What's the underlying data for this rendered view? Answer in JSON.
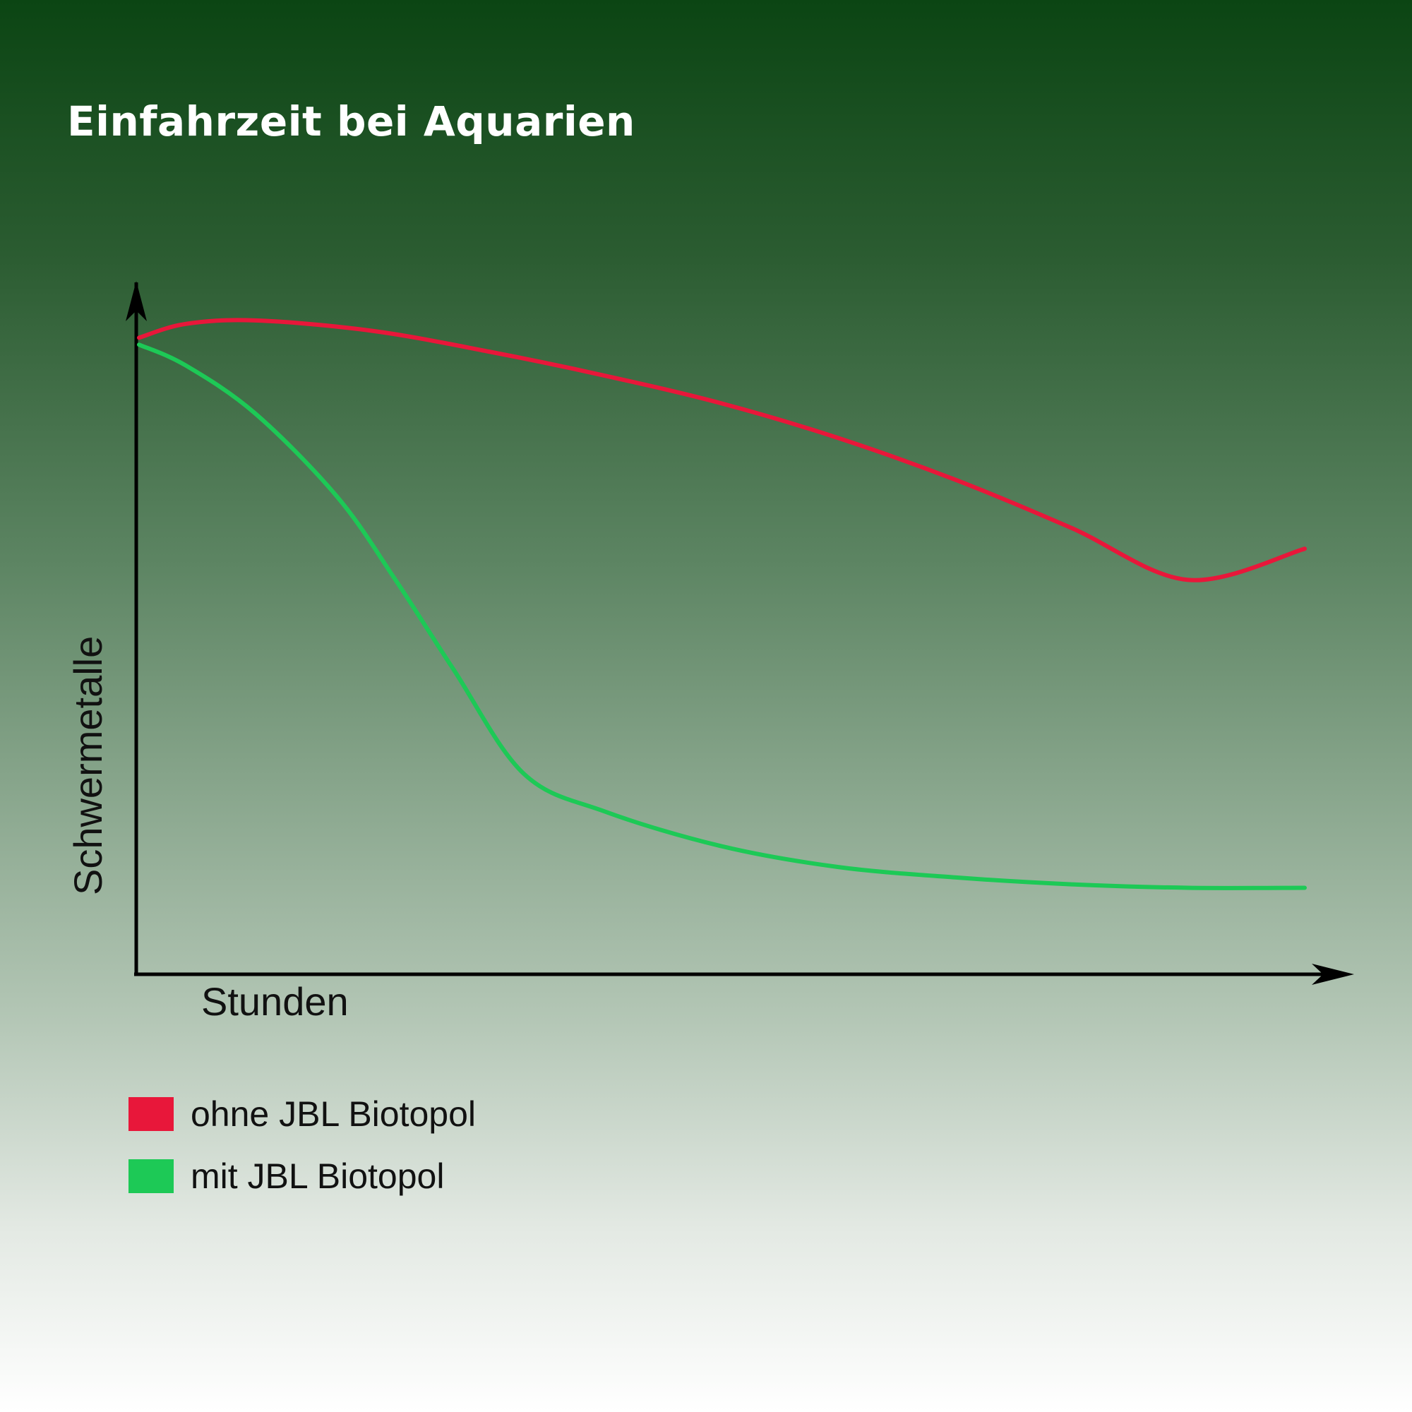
{
  "chart_data": {
    "type": "line",
    "title": "Einfahrzeit bei Aquarien",
    "xlabel": "Stunden",
    "ylabel": "Schwermetalle",
    "xlim": [
      0,
      100
    ],
    "ylim": [
      0,
      100
    ],
    "grid": false,
    "legend_position": "bottom-left",
    "series": [
      {
        "name": "ohne JBL Biotopol",
        "color": "#e8173a",
        "x": [
          0,
          4,
          10,
          20,
          30,
          40,
          50,
          60,
          70,
          80,
          90,
          100
        ],
        "y": [
          92,
          94,
          94.5,
          93,
          90,
          86.5,
          82.5,
          77.5,
          71.5,
          64.5,
          57,
          61.5
        ]
      },
      {
        "name": "mit JBL Biotopol",
        "color": "#1dc956",
        "x": [
          0,
          4,
          10,
          17,
          22,
          27,
          33,
          40,
          50,
          60,
          70,
          80,
          90,
          100
        ],
        "y": [
          91,
          88,
          81,
          69,
          57,
          44,
          29,
          23.5,
          18.5,
          15.5,
          14,
          13,
          12.5,
          12.5
        ]
      }
    ]
  }
}
